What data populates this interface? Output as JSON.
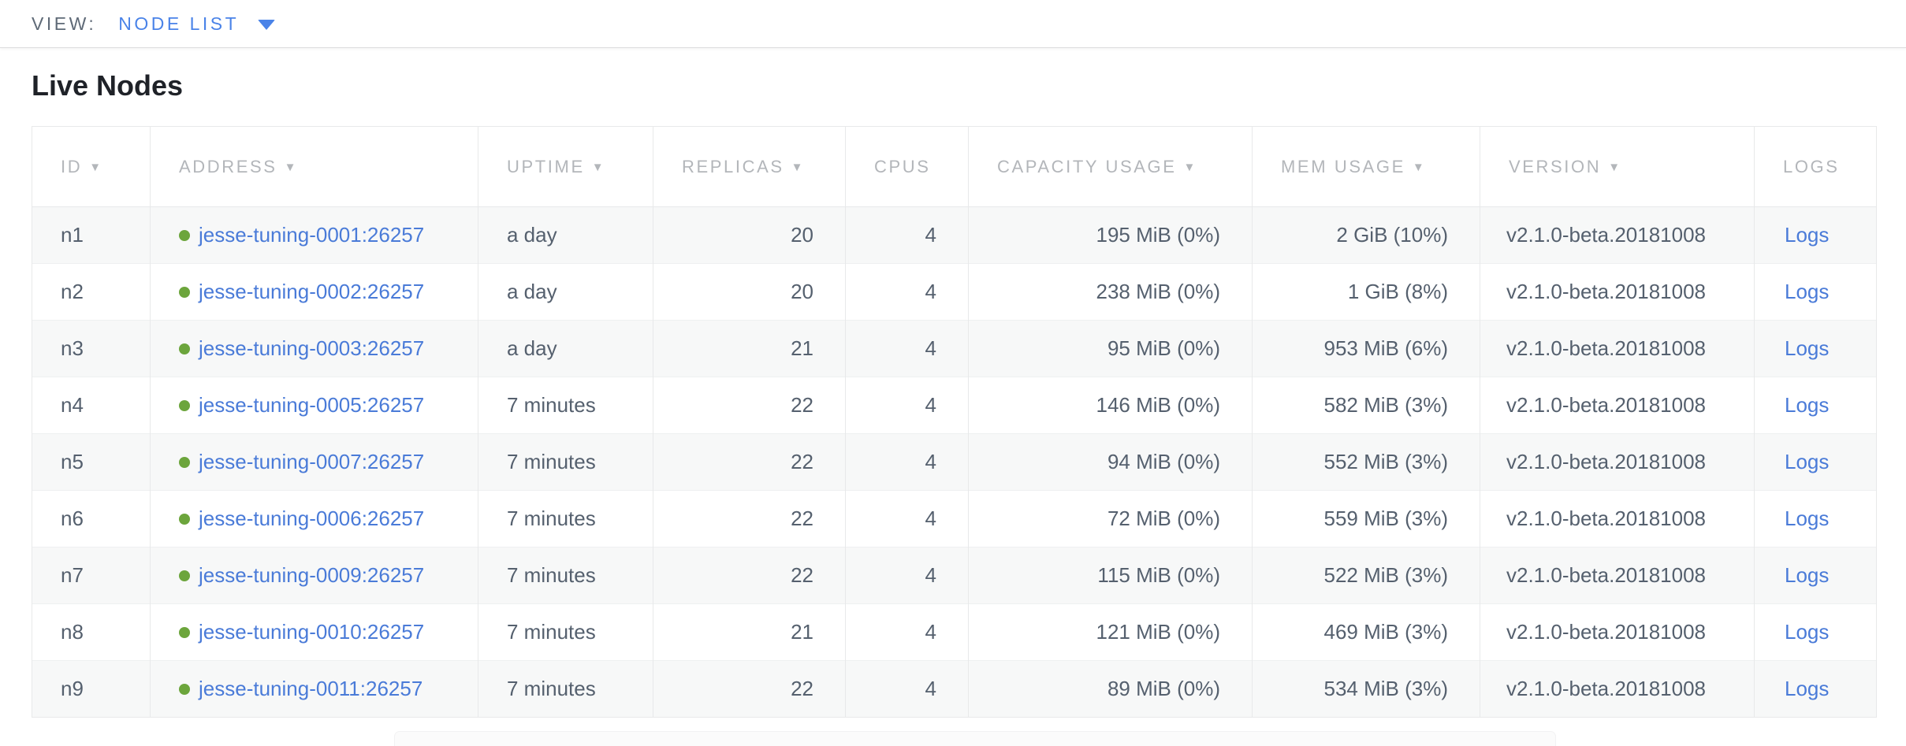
{
  "view_bar": {
    "label": "VIEW:",
    "selected": "NODE LIST"
  },
  "page": {
    "title": "Live Nodes"
  },
  "table": {
    "sort_arrow": "▼",
    "columns": [
      {
        "label": "ID",
        "sortable": true
      },
      {
        "label": "ADDRESS",
        "sortable": true
      },
      {
        "label": "UPTIME",
        "sortable": true
      },
      {
        "label": "REPLICAS",
        "sortable": true
      },
      {
        "label": "CPUS",
        "sortable": false
      },
      {
        "label": "CAPACITY USAGE",
        "sortable": true
      },
      {
        "label": "MEM USAGE",
        "sortable": true
      },
      {
        "label": "VERSION",
        "sortable": true
      },
      {
        "label": "LOGS",
        "sortable": false
      }
    ],
    "rows": [
      {
        "id": "n1",
        "status": "live",
        "address": "jesse-tuning-0001:26257",
        "uptime": "a day",
        "replicas": "20",
        "cpus": "4",
        "capacity": "195 MiB (0%)",
        "mem": "2 GiB (10%)",
        "version": "v2.1.0-beta.20181008",
        "logs": "Logs"
      },
      {
        "id": "n2",
        "status": "live",
        "address": "jesse-tuning-0002:26257",
        "uptime": "a day",
        "replicas": "20",
        "cpus": "4",
        "capacity": "238 MiB (0%)",
        "mem": "1 GiB (8%)",
        "version": "v2.1.0-beta.20181008",
        "logs": "Logs"
      },
      {
        "id": "n3",
        "status": "live",
        "address": "jesse-tuning-0003:26257",
        "uptime": "a day",
        "replicas": "21",
        "cpus": "4",
        "capacity": "95 MiB (0%)",
        "mem": "953 MiB (6%)",
        "version": "v2.1.0-beta.20181008",
        "logs": "Logs"
      },
      {
        "id": "n4",
        "status": "live",
        "address": "jesse-tuning-0005:26257",
        "uptime": "7 minutes",
        "replicas": "22",
        "cpus": "4",
        "capacity": "146 MiB (0%)",
        "mem": "582 MiB (3%)",
        "version": "v2.1.0-beta.20181008",
        "logs": "Logs"
      },
      {
        "id": "n5",
        "status": "live",
        "address": "jesse-tuning-0007:26257",
        "uptime": "7 minutes",
        "replicas": "22",
        "cpus": "4",
        "capacity": "94 MiB (0%)",
        "mem": "552 MiB (3%)",
        "version": "v2.1.0-beta.20181008",
        "logs": "Logs"
      },
      {
        "id": "n6",
        "status": "live",
        "address": "jesse-tuning-0006:26257",
        "uptime": "7 minutes",
        "replicas": "22",
        "cpus": "4",
        "capacity": "72 MiB (0%)",
        "mem": "559 MiB (3%)",
        "version": "v2.1.0-beta.20181008",
        "logs": "Logs"
      },
      {
        "id": "n7",
        "status": "live",
        "address": "jesse-tuning-0009:26257",
        "uptime": "7 minutes",
        "replicas": "22",
        "cpus": "4",
        "capacity": "115 MiB (0%)",
        "mem": "522 MiB (3%)",
        "version": "v2.1.0-beta.20181008",
        "logs": "Logs"
      },
      {
        "id": "n8",
        "status": "live",
        "address": "jesse-tuning-0010:26257",
        "uptime": "7 minutes",
        "replicas": "21",
        "cpus": "4",
        "capacity": "121 MiB (0%)",
        "mem": "469 MiB (3%)",
        "version": "v2.1.0-beta.20181008",
        "logs": "Logs"
      },
      {
        "id": "n9",
        "status": "live",
        "address": "jesse-tuning-0011:26257",
        "uptime": "7 minutes",
        "replicas": "22",
        "cpus": "4",
        "capacity": "89 MiB (0%)",
        "mem": "534 MiB (3%)",
        "version": "v2.1.0-beta.20181008",
        "logs": "Logs"
      }
    ]
  },
  "colors": {
    "accent_blue": "#4a83e8",
    "link_blue": "#4a7bd8",
    "live_status_green": "#6ca53c",
    "header_text_gray": "#b3b6ba",
    "body_text_slate": "#55606e",
    "row_stripe": "#f7f8f8"
  }
}
